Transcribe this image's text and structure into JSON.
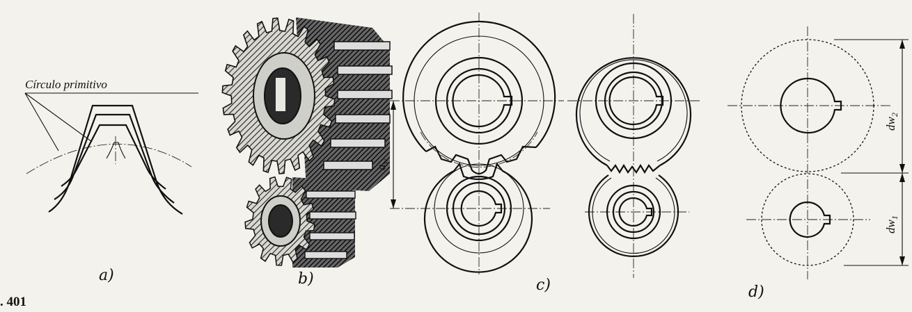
{
  "figure_number": ". 401",
  "panels": {
    "a": {
      "label": "a)",
      "caption": "Círculo primitivo"
    },
    "b": {
      "label": "b)"
    },
    "c": {
      "label": "c)",
      "dimension": "a",
      "dimension_sub": "w"
    },
    "d": {
      "label": "d)",
      "dim_upper": "dw",
      "dim_upper_sub": "2",
      "dim_lower": "dw",
      "dim_lower_sub": "1"
    }
  }
}
